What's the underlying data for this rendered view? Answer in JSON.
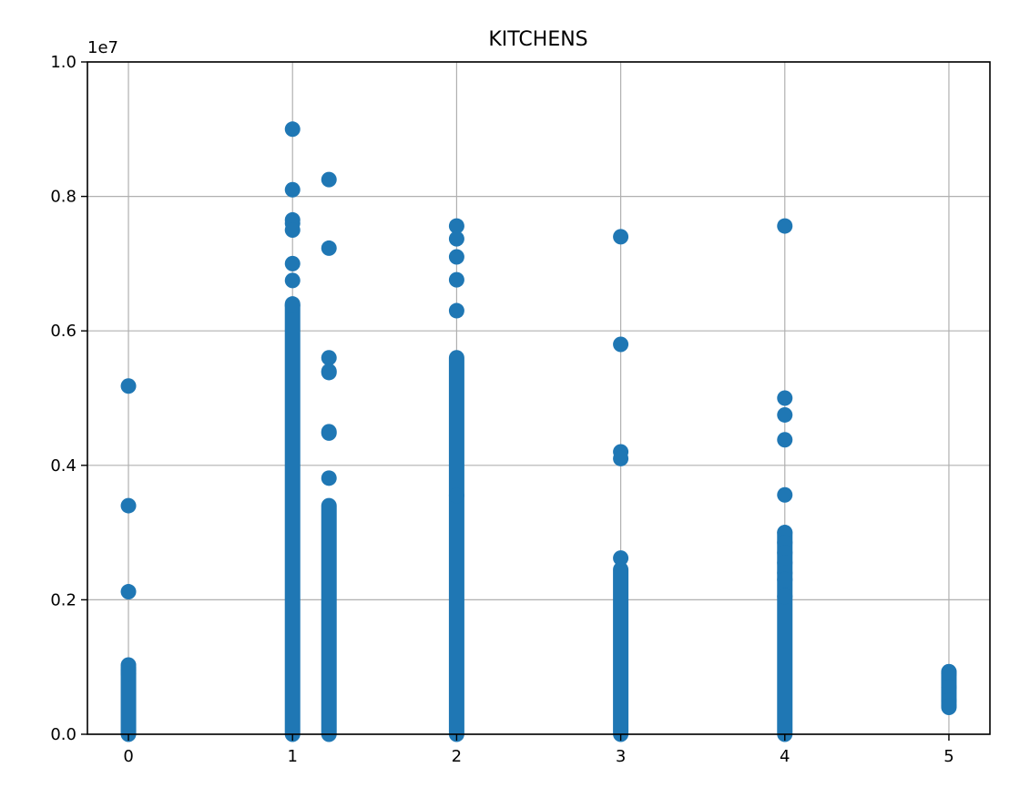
{
  "chart_data": {
    "type": "scatter",
    "title": "KITCHENS",
    "xlabel": "",
    "ylabel": "",
    "xlim": [
      -0.25,
      5.25
    ],
    "ylim": [
      0,
      10000000
    ],
    "x_ticks": [
      0,
      1,
      2,
      3,
      4,
      5
    ],
    "x_tick_labels": [
      "0",
      "1",
      "2",
      "3",
      "4",
      "5"
    ],
    "y_ticks": [
      0,
      2000000,
      4000000,
      6000000,
      8000000,
      10000000
    ],
    "y_tick_labels": [
      "0.0",
      "0.2",
      "0.4",
      "0.6",
      "0.8",
      "1.0"
    ],
    "y_offset_label": "1e7",
    "grid": true,
    "marker_color": "#1f77b4",
    "series": [
      {
        "x": 0,
        "dense_range": [
          0,
          1000000
        ],
        "values": [
          5180000,
          3400000,
          2120000,
          1030000,
          950000,
          900000
        ]
      },
      {
        "x": 1,
        "dense_range": [
          0,
          6400000
        ],
        "values": [
          9000000,
          8100000,
          7650000,
          7600000,
          7500000,
          7000000,
          6750000,
          6380000
        ]
      },
      {
        "x": 1.222,
        "dense_range": [
          0,
          3400000
        ],
        "values": [
          8250000,
          7230000,
          5600000,
          5400000,
          5380000,
          4500000,
          4480000,
          3810000
        ]
      },
      {
        "x": 2,
        "dense_range": [
          0,
          5600000
        ],
        "values": [
          7560000,
          7370000,
          7100000,
          6760000,
          6300000,
          3550000
        ]
      },
      {
        "x": 3,
        "dense_range": [
          0,
          2450000
        ],
        "values": [
          7400000,
          5800000,
          4200000,
          4100000,
          2620000
        ]
      },
      {
        "x": 4,
        "dense_range": [
          0,
          3000000
        ],
        "values": [
          7560000,
          5000000,
          4750000,
          4380000,
          3560000,
          3000000,
          2850000,
          2700000,
          2550000,
          2400000,
          2300000,
          2050000
        ]
      },
      {
        "x": 5,
        "dense_range": [
          400000,
          930000
        ],
        "values": [
          930000,
          900000,
          700000,
          500000,
          420000
        ]
      }
    ]
  }
}
